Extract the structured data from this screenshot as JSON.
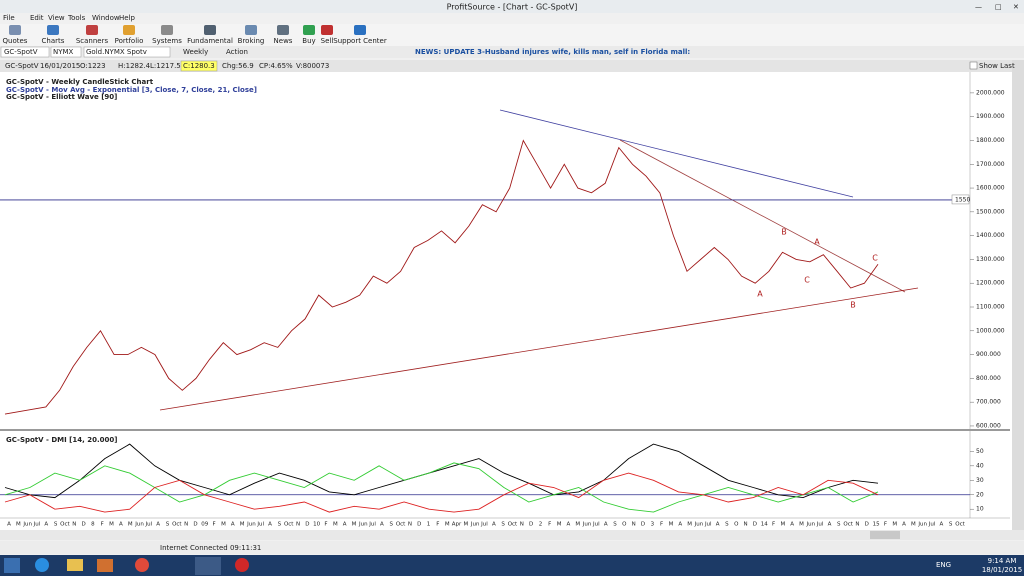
{
  "window": {
    "title": "ProfitSource - [Chart - GC-SpotV]"
  },
  "menu": [
    "File",
    "Edit",
    "View",
    "Tools",
    "Window",
    "Help"
  ],
  "toolbar": [
    "Quotes",
    "Charts",
    "Scanners",
    "Portfolio",
    "Systems",
    "Fundamental",
    "Broking",
    "News",
    "Buy",
    "Sell",
    "Support Center"
  ],
  "symbol_bar": {
    "symbol": "GC-SpotV",
    "exchange": "NYMX",
    "name": "Gold.NYMX Spotv",
    "period": "Weekly",
    "action": "Action",
    "news": "NEWS: UPDATE 3-Husband injures wife, kills man, self in Florida mall:"
  },
  "info_bar": {
    "symbol": "GC-SpotV",
    "date": "16/01/2015",
    "open": "O:1223",
    "high": "H:1282.4",
    "low": "L:1217.5",
    "close": "C:1280.3",
    "change": "Chg:56.9",
    "change_pct": "CP:4.65%",
    "volume": "V:800073",
    "show_last": "Show Last"
  },
  "chart_data": [
    {
      "type": "line",
      "title": "GC-SpotV - Weekly CandleStick Chart",
      "legend": [
        "GC-SpotV - Mov Avg - Exponential [3, Close, 7, Close, 21, Close]",
        "GC-SpotV - Elliott Wave [90]"
      ],
      "series": [
        {
          "color": "#a01818",
          "values": [
            650,
            660,
            670,
            680,
            750,
            850,
            930,
            1000,
            900,
            900,
            930,
            900,
            800,
            750,
            800,
            880,
            950,
            900,
            920,
            950,
            930,
            1000,
            1050,
            1150,
            1100,
            1120,
            1150,
            1230,
            1200,
            1250,
            1350,
            1380,
            1420,
            1370,
            1440,
            1530,
            1500,
            1600,
            1800,
            1700,
            1600,
            1700,
            1600,
            1580,
            1620,
            1770,
            1700,
            1650,
            1580,
            1400,
            1250,
            1300,
            1350,
            1300,
            1230,
            1200,
            1250,
            1330,
            1300,
            1290,
            1320,
            1250,
            1180,
            1200,
            1280
          ]
        }
      ],
      "ylim": [
        583,
        2071
      ],
      "yticks": [
        {
          "value": 600,
          "label": "600.000"
        },
        {
          "value": 700,
          "label": "700.000"
        },
        {
          "value": 800,
          "label": "800.000"
        },
        {
          "value": 900,
          "label": "900.000"
        },
        {
          "value": 1000,
          "label": "1000.000"
        },
        {
          "value": 1100,
          "label": "1100.000"
        },
        {
          "value": 1200,
          "label": "1200.000"
        },
        {
          "value": 1300,
          "label": "1300.000"
        },
        {
          "value": 1400,
          "label": "1400.000"
        },
        {
          "value": 1500,
          "label": "1500.000"
        },
        {
          "value": 1600,
          "label": "1600.000"
        },
        {
          "value": 1700,
          "label": "1700.000"
        },
        {
          "value": 1800,
          "label": "1800.000"
        },
        {
          "value": 1900,
          "label": "1900.000"
        },
        {
          "value": 2000,
          "label": "2000.000"
        }
      ],
      "levels": [
        1550
      ],
      "wave_labels": [
        "A",
        "B",
        "A",
        "C",
        "B",
        "C"
      ]
    },
    {
      "type": "line",
      "title": "GC-SpotV - DMI [14, 20.000]",
      "series": [
        {
          "color": "#000000",
          "values": [
            25,
            20,
            18,
            30,
            45,
            55,
            40,
            30,
            25,
            20,
            28,
            35,
            30,
            22,
            20,
            25,
            30,
            35,
            40,
            45,
            35,
            28,
            20,
            22,
            30,
            45,
            55,
            50,
            40,
            30,
            25,
            20,
            18,
            25,
            30,
            28
          ]
        },
        {
          "color": "#33cc33",
          "values": [
            20,
            25,
            35,
            30,
            40,
            35,
            25,
            15,
            20,
            30,
            35,
            30,
            25,
            35,
            30,
            40,
            30,
            35,
            42,
            38,
            25,
            15,
            20,
            25,
            15,
            10,
            8,
            15,
            20,
            25,
            20,
            15,
            20,
            25,
            15,
            22
          ]
        },
        {
          "color": "#dd2222",
          "values": [
            15,
            20,
            10,
            12,
            8,
            10,
            25,
            30,
            20,
            15,
            10,
            12,
            15,
            8,
            12,
            10,
            15,
            10,
            8,
            10,
            20,
            28,
            25,
            18,
            30,
            35,
            30,
            22,
            20,
            15,
            18,
            25,
            20,
            30,
            28,
            20
          ]
        }
      ],
      "ylim": [
        6,
        62
      ],
      "yticks": [
        10,
        20,
        30,
        40,
        50
      ],
      "levels": [
        20
      ],
      "x_labels": [
        "A",
        "M",
        "Jun",
        "Jul",
        "A",
        "S",
        "Oct",
        "N",
        "D",
        "8",
        "F",
        "M",
        "A",
        "M",
        "Jun",
        "Jul",
        "A",
        "S",
        "Oct",
        "N",
        "D",
        "09",
        "F",
        "M",
        "A",
        "M",
        "Jun",
        "Jul",
        "A",
        "S",
        "Oct",
        "N",
        "D",
        "10",
        "F",
        "M",
        "A",
        "M",
        "Jun",
        "Jul",
        "A",
        "S",
        "Oct",
        "N",
        "D",
        "1",
        "F",
        "M",
        "Apr",
        "M",
        "Jun",
        "Jul",
        "A",
        "S",
        "Oct",
        "N",
        "D",
        "2",
        "F",
        "M",
        "A",
        "M",
        "Jun",
        "Jul",
        "A",
        "S",
        "O",
        "N",
        "D",
        "3",
        "F",
        "M",
        "A",
        "M",
        "Jun",
        "Jul",
        "A",
        "S",
        "O",
        "N",
        "D",
        "14",
        "F",
        "M",
        "A",
        "M",
        "Jun",
        "Jul",
        "A",
        "S",
        "Oct",
        "N",
        "D",
        "15",
        "F",
        "M",
        "A",
        "M",
        "Jun",
        "Jul",
        "A",
        "S",
        "Oct"
      ]
    }
  ],
  "status_bar": {
    "connection": "Internet Connected 09:11:31"
  },
  "taskbar": {
    "language": "ENG",
    "time": "9:14 AM",
    "date": "18/01/2015"
  }
}
